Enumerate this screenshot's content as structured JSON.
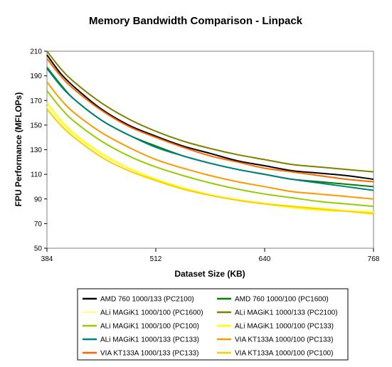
{
  "chart_data": {
    "type": "line",
    "title": "Memory Bandwidth Comparison - Linpack",
    "xlabel": "Dataset Size (KB)",
    "ylabel": "FPU Performance (MFLOPs)",
    "xlim": [
      384,
      768
    ],
    "ylim": [
      50,
      210
    ],
    "xticks": [
      384,
      512,
      640,
      768
    ],
    "yticks": [
      50,
      70,
      90,
      110,
      130,
      150,
      170,
      190,
      210
    ],
    "grid": false,
    "legend_position": "bottom",
    "x": [
      384,
      400,
      416,
      448,
      480,
      512,
      544,
      576,
      608,
      640,
      672,
      704,
      736,
      768
    ],
    "series": [
      {
        "name": "AMD 760 1000/133 (PC2100)",
        "color": "#000000",
        "values": [
          207,
          192,
          181,
          163,
          150,
          141,
          133,
          127,
          121,
          117,
          113,
          111,
          109,
          106
        ]
      },
      {
        "name": "AMD 760 1000/100 (PC1600)",
        "color": "#008000",
        "values": [
          197,
          183,
          171,
          154,
          142,
          133,
          125,
          119,
          114,
          110,
          106,
          104,
          102,
          100
        ]
      },
      {
        "name": "ALi MAGiK1 1000/100 (PC1600)",
        "color": "#ffff99",
        "values": [
          165,
          152,
          142,
          126,
          115,
          106,
          99,
          94,
          90,
          87,
          84,
          83,
          81,
          80
        ]
      },
      {
        "name": "ALi MAGiK1 1000/133 (PC2100)",
        "color": "#808000",
        "values": [
          210,
          196,
          185,
          168,
          155,
          145,
          137,
          131,
          126,
          122,
          118,
          116,
          114,
          112
        ]
      },
      {
        "name": "ALi MAGiK1 1000/100 (PC100)",
        "color": "#99cc00",
        "values": [
          178,
          164,
          153,
          137,
          125,
          116,
          109,
          103,
          98,
          94,
          91,
          88,
          86,
          84
        ]
      },
      {
        "name": "ALi MAGiK1 1000/100 (PC133)",
        "color": "#ffff00",
        "values": [
          168,
          154,
          143,
          127,
          115,
          106,
          99,
          93,
          89,
          86,
          83,
          81,
          80,
          79
        ]
      },
      {
        "name": "ALi MAGiK1 1000/133 (PC133)",
        "color": "#008080",
        "values": [
          196,
          182,
          171,
          154,
          142,
          132,
          125,
          119,
          114,
          110,
          106,
          103,
          100,
          97
        ]
      },
      {
        "name": "VIA KT133A 1000/100 (PC133)",
        "color": "#ff9900",
        "values": [
          185,
          171,
          160,
          144,
          132,
          122,
          115,
          109,
          104,
          100,
          96,
          94,
          92,
          90
        ]
      },
      {
        "name": "VIA KT133A 1000/133 (PC133)",
        "color": "#ff6600",
        "values": [
          204,
          190,
          179,
          162,
          149,
          140,
          132,
          125,
          120,
          115,
          112,
          109,
          106,
          104
        ]
      },
      {
        "name": "VIA KT133A 1000/100 (PC100)",
        "color": "#ffcc00",
        "values": [
          163,
          150,
          140,
          124,
          113,
          105,
          98,
          93,
          89,
          86,
          84,
          82,
          80,
          78
        ]
      }
    ]
  }
}
